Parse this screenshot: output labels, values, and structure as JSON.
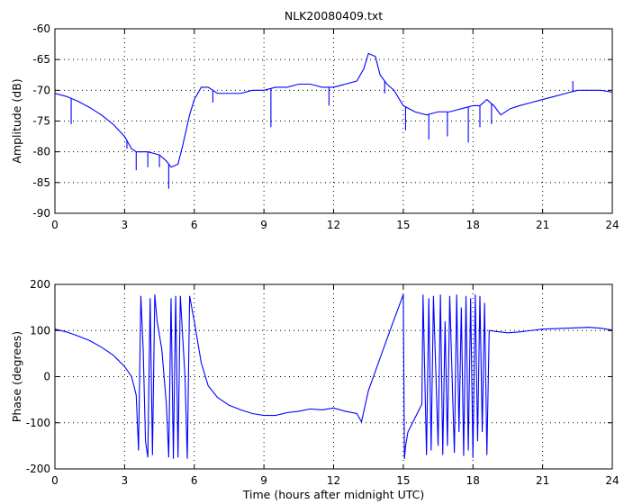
{
  "chart_data": [
    {
      "type": "line",
      "title": "NLK20080409.txt",
      "xlabel": "",
      "ylabel": "Amplitude (dB)",
      "xlim": [
        0,
        24
      ],
      "ylim": [
        -90,
        -60
      ],
      "xticks": [
        0,
        3,
        6,
        9,
        12,
        15,
        18,
        21,
        24
      ],
      "yticks": [
        -90,
        -85,
        -80,
        -75,
        -70,
        -65,
        -60
      ],
      "grid": "dotted",
      "color": "#0000ff",
      "x": [
        0,
        0.5,
        1.0,
        1.5,
        2.0,
        2.5,
        3.0,
        3.3,
        3.5,
        4.0,
        4.5,
        4.8,
        5.0,
        5.3,
        5.5,
        5.8,
        6.0,
        6.3,
        6.6,
        7.0,
        7.5,
        8.0,
        8.5,
        9.0,
        9.5,
        10.0,
        10.5,
        11.0,
        11.5,
        12.0,
        12.5,
        13.0,
        13.3,
        13.5,
        13.8,
        14.0,
        14.3,
        14.6,
        15.0,
        15.5,
        16.0,
        16.5,
        17.0,
        17.5,
        18.0,
        18.3,
        18.6,
        18.9,
        19.2,
        19.6,
        20.0,
        20.5,
        21.0,
        21.5,
        22.0,
        22.5,
        23.0,
        23.5,
        24.0
      ],
      "y": [
        -70.5,
        -71.0,
        -71.8,
        -72.8,
        -74.0,
        -75.5,
        -77.5,
        -79.5,
        -80.0,
        -80.0,
        -80.5,
        -81.5,
        -82.5,
        -82.0,
        -79.0,
        -74.0,
        -71.5,
        -69.5,
        -69.5,
        -70.5,
        -70.5,
        -70.5,
        -70.0,
        -70.0,
        -69.5,
        -69.5,
        -69.0,
        -69.0,
        -69.5,
        -69.5,
        -69.0,
        -68.5,
        -66.5,
        -64.0,
        -64.5,
        -67.5,
        -69.0,
        -70.0,
        -72.5,
        -73.5,
        -74.0,
        -73.5,
        -73.5,
        -73.0,
        -72.5,
        -72.5,
        -71.5,
        -72.5,
        -74.0,
        -73.0,
        -72.5,
        -72.0,
        -71.5,
        -71.0,
        -70.5,
        -70.0,
        -70.0,
        -70.0,
        -70.3
      ],
      "spikes": [
        {
          "x": 0.7,
          "y": -75.5
        },
        {
          "x": 3.1,
          "y": -79.5
        },
        {
          "x": 3.5,
          "y": -83.0
        },
        {
          "x": 4.0,
          "y": -82.5
        },
        {
          "x": 4.5,
          "y": -82.5
        },
        {
          "x": 4.9,
          "y": -86.0
        },
        {
          "x": 6.8,
          "y": -72.0
        },
        {
          "x": 9.3,
          "y": -76.0
        },
        {
          "x": 11.8,
          "y": -72.5
        },
        {
          "x": 14.2,
          "y": -70.5
        },
        {
          "x": 15.1,
          "y": -76.5
        },
        {
          "x": 16.1,
          "y": -78.0
        },
        {
          "x": 16.9,
          "y": -77.5
        },
        {
          "x": 17.8,
          "y": -78.5
        },
        {
          "x": 18.3,
          "y": -76.0
        },
        {
          "x": 18.8,
          "y": -75.5
        },
        {
          "x": 22.3,
          "y": -68.5
        }
      ]
    },
    {
      "type": "line",
      "title": "",
      "xlabel": "Time (hours after midnight UTC)",
      "ylabel": "Phase (degrees)",
      "xlim": [
        0,
        24
      ],
      "ylim": [
        -200,
        200
      ],
      "xticks": [
        0,
        3,
        6,
        9,
        12,
        15,
        18,
        21,
        24
      ],
      "yticks": [
        -200,
        -100,
        0,
        100,
        200
      ],
      "grid": "dotted",
      "color": "#0000ff",
      "x": [
        0,
        0.5,
        1.0,
        1.5,
        2.0,
        2.5,
        3.0,
        3.3,
        3.5,
        3.6,
        3.7,
        3.8,
        3.9,
        4.0,
        4.1,
        4.2,
        4.3,
        4.4,
        4.6,
        4.8,
        4.9,
        5.0,
        5.1,
        5.2,
        5.3,
        5.4,
        5.6,
        5.7,
        5.8,
        6.0,
        6.3,
        6.6,
        7.0,
        7.5,
        8.0,
        8.5,
        9.0,
        9.5,
        10.0,
        10.5,
        11.0,
        11.5,
        12.0,
        12.5,
        13.0,
        13.2,
        13.5,
        14.0,
        14.5,
        15.0,
        15.05,
        15.1,
        15.2,
        15.4,
        15.6,
        15.8,
        15.85,
        16.0,
        16.1,
        16.2,
        16.3,
        16.5,
        16.6,
        16.7,
        16.8,
        16.9,
        17.0,
        17.2,
        17.3,
        17.4,
        17.5,
        17.6,
        17.7,
        17.8,
        17.9,
        18.0,
        18.1,
        18.2,
        18.3,
        18.4,
        18.5,
        18.6,
        18.7,
        19.0,
        19.5,
        20.0,
        20.5,
        21.0,
        21.5,
        22.0,
        22.5,
        23.0,
        23.5,
        24.0
      ],
      "y": [
        103,
        97,
        88,
        78,
        64,
        47,
        22,
        0,
        -40,
        -160,
        175,
        60,
        -140,
        -175,
        170,
        -170,
        178,
        120,
        60,
        -60,
        -175,
        170,
        -178,
        175,
        -175,
        175,
        0,
        -178,
        175,
        120,
        30,
        -20,
        -45,
        -62,
        -72,
        -80,
        -84,
        -84,
        -78,
        -75,
        -70,
        -72,
        -68,
        -75,
        -80,
        -98,
        -30,
        40,
        110,
        178,
        -178,
        -150,
        -120,
        -100,
        -80,
        -60,
        178,
        -170,
        170,
        -160,
        175,
        -150,
        178,
        -170,
        120,
        -150,
        175,
        -165,
        178,
        -120,
        150,
        -172,
        175,
        -160,
        170,
        -176,
        178,
        -140,
        175,
        -120,
        160,
        -170,
        100,
        98,
        95,
        97,
        100,
        103,
        104,
        105,
        106,
        107,
        105,
        101
      ]
    }
  ]
}
